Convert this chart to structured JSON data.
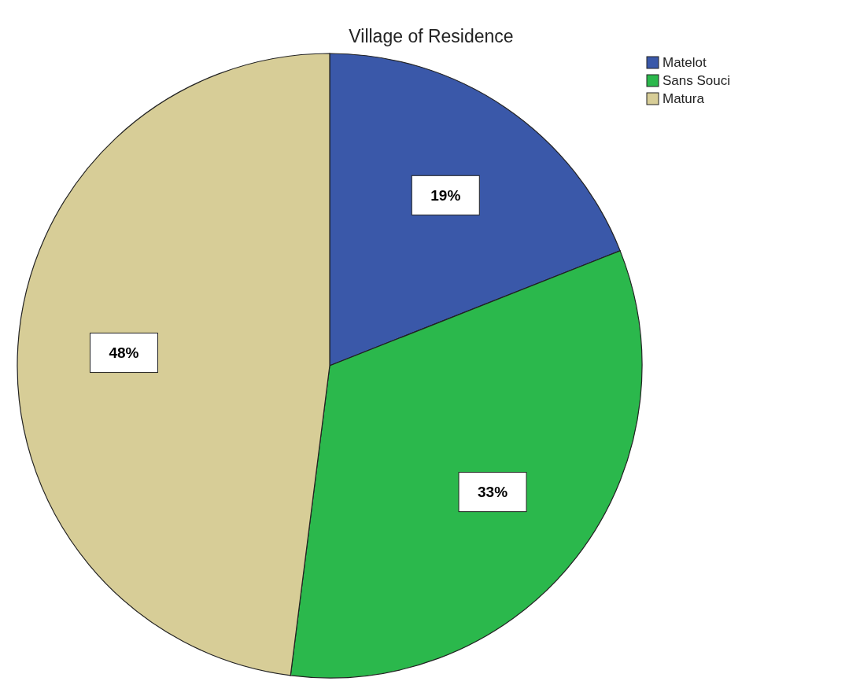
{
  "chart_data": {
    "type": "pie",
    "title": "Village of Residence",
    "categories": [
      "Matelot",
      "Sans Souci",
      "Matura"
    ],
    "values": [
      19,
      33,
      48
    ],
    "colors": [
      "#3a58a9",
      "#2bb84c",
      "#d7cd97"
    ],
    "value_labels": [
      "19%",
      "33%",
      "48%"
    ],
    "legend": "top right"
  }
}
